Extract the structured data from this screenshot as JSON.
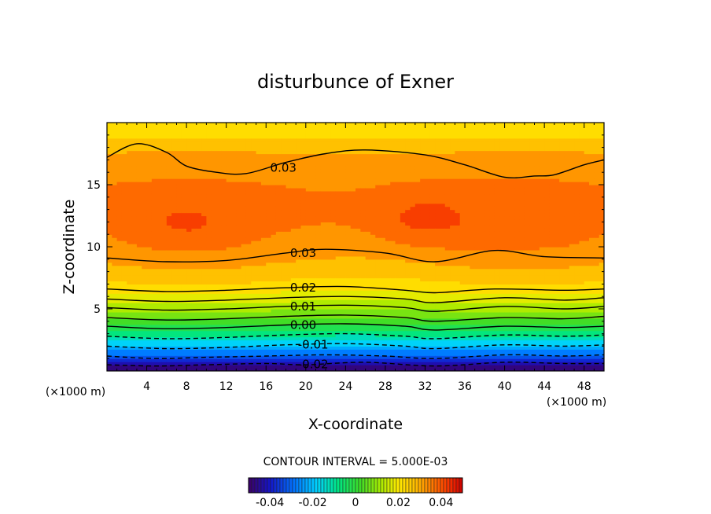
{
  "chart_data": {
    "type": "heatmap",
    "title": "disturbunce of Exner",
    "xlabel": "X-coordinate",
    "ylabel": "Z-coordinate",
    "x_unit": "(×1000 m)",
    "y_unit": "(×1000 m)",
    "xlim": [
      0,
      50
    ],
    "ylim": [
      0,
      20
    ],
    "x_ticks": [
      4,
      8,
      12,
      16,
      20,
      24,
      28,
      32,
      36,
      40,
      44,
      48
    ],
    "y_ticks": [
      5,
      10,
      15
    ],
    "contour_interval_text": "CONTOUR INTERVAL = 5.000E-03",
    "colorbar": {
      "range": [
        -0.05,
        0.05
      ],
      "ticks": [
        "-0.04",
        "-0.02",
        "0",
        "0.02",
        "0.04"
      ],
      "tick_values": [
        -0.04,
        -0.02,
        0,
        0.02,
        0.04
      ]
    },
    "contours": [
      {
        "level": -0.02,
        "label": "-0.02",
        "dashed": true,
        "label_x": 19,
        "points": [
          [
            0,
            0.5
          ],
          [
            5,
            0.4
          ],
          [
            10,
            0.5
          ],
          [
            16,
            0.6
          ],
          [
            20,
            0.5
          ],
          [
            26,
            0.7
          ],
          [
            33,
            0.4
          ],
          [
            40,
            0.7
          ],
          [
            46,
            0.6
          ],
          [
            50,
            0.6
          ]
        ]
      },
      {
        "level": -0.015,
        "label": "",
        "dashed": true,
        "points": [
          [
            0,
            1.2
          ],
          [
            5,
            1.0
          ],
          [
            10,
            1.1
          ],
          [
            16,
            1.2
          ],
          [
            22,
            1.3
          ],
          [
            28,
            1.2
          ],
          [
            33,
            1.0
          ],
          [
            40,
            1.3
          ],
          [
            46,
            1.2
          ],
          [
            50,
            1.3
          ]
        ]
      },
      {
        "level": -0.01,
        "label": "-0.01",
        "dashed": true,
        "label_x": 19,
        "points": [
          [
            0,
            2.0
          ],
          [
            6,
            1.8
          ],
          [
            12,
            1.9
          ],
          [
            18,
            2.1
          ],
          [
            24,
            2.2
          ],
          [
            30,
            2.0
          ],
          [
            33,
            1.8
          ],
          [
            40,
            2.1
          ],
          [
            46,
            2.0
          ],
          [
            50,
            2.1
          ]
        ]
      },
      {
        "level": -0.005,
        "label": "",
        "dashed": true,
        "points": [
          [
            0,
            2.8
          ],
          [
            6,
            2.6
          ],
          [
            12,
            2.7
          ],
          [
            18,
            2.9
          ],
          [
            24,
            3.0
          ],
          [
            30,
            2.8
          ],
          [
            33,
            2.6
          ],
          [
            40,
            2.9
          ],
          [
            46,
            2.8
          ],
          [
            50,
            2.9
          ]
        ]
      },
      {
        "level": 0.0,
        "label": "0.00",
        "dashed": false,
        "label_x": 18,
        "points": [
          [
            0,
            3.6
          ],
          [
            6,
            3.4
          ],
          [
            12,
            3.5
          ],
          [
            18,
            3.7
          ],
          [
            24,
            3.8
          ],
          [
            30,
            3.6
          ],
          [
            33,
            3.3
          ],
          [
            40,
            3.6
          ],
          [
            46,
            3.5
          ],
          [
            50,
            3.6
          ]
        ]
      },
      {
        "level": 0.005,
        "label": "",
        "dashed": false,
        "points": [
          [
            0,
            4.3
          ],
          [
            6,
            4.1
          ],
          [
            12,
            4.2
          ],
          [
            18,
            4.4
          ],
          [
            24,
            4.5
          ],
          [
            30,
            4.3
          ],
          [
            33,
            4.0
          ],
          [
            40,
            4.3
          ],
          [
            46,
            4.2
          ],
          [
            50,
            4.4
          ]
        ]
      },
      {
        "level": 0.01,
        "label": "0.01",
        "dashed": false,
        "label_x": 18,
        "points": [
          [
            0,
            5.1
          ],
          [
            6,
            4.9
          ],
          [
            12,
            5.0
          ],
          [
            18,
            5.2
          ],
          [
            24,
            5.3
          ],
          [
            30,
            5.1
          ],
          [
            33,
            4.8
          ],
          [
            40,
            5.2
          ],
          [
            46,
            5.0
          ],
          [
            50,
            5.2
          ]
        ]
      },
      {
        "level": 0.015,
        "label": "",
        "dashed": false,
        "points": [
          [
            0,
            5.8
          ],
          [
            6,
            5.6
          ],
          [
            12,
            5.7
          ],
          [
            18,
            5.9
          ],
          [
            24,
            6.0
          ],
          [
            30,
            5.8
          ],
          [
            33,
            5.5
          ],
          [
            40,
            5.9
          ],
          [
            46,
            5.7
          ],
          [
            50,
            5.9
          ]
        ]
      },
      {
        "level": 0.02,
        "label": "0.02",
        "dashed": false,
        "label_x": 18,
        "points": [
          [
            0,
            6.6
          ],
          [
            6,
            6.4
          ],
          [
            12,
            6.5
          ],
          [
            18,
            6.7
          ],
          [
            24,
            6.8
          ],
          [
            30,
            6.5
          ],
          [
            33,
            6.3
          ],
          [
            39,
            6.6
          ],
          [
            46,
            6.5
          ],
          [
            50,
            6.6
          ]
        ]
      },
      {
        "level": 0.03,
        "label": "0.03",
        "dashed": false,
        "label_x": 18,
        "points": [
          [
            0,
            9.1
          ],
          [
            6,
            8.8
          ],
          [
            12,
            8.9
          ],
          [
            18,
            9.5
          ],
          [
            22,
            9.8
          ],
          [
            28,
            9.5
          ],
          [
            33,
            8.8
          ],
          [
            39,
            9.7
          ],
          [
            44,
            9.2
          ],
          [
            50,
            9.1
          ]
        ]
      },
      {
        "level": 0.03,
        "label": "0.03",
        "dashed": false,
        "label_x": 16,
        "points": [
          [
            0,
            17.2
          ],
          [
            3,
            18.3
          ],
          [
            6,
            17.6
          ],
          [
            8,
            16.5
          ],
          [
            11,
            16.0
          ],
          [
            14,
            15.9
          ],
          [
            18,
            16.8
          ],
          [
            22,
            17.5
          ],
          [
            26,
            17.8
          ],
          [
            32,
            17.4
          ],
          [
            36,
            16.6
          ],
          [
            40,
            15.6
          ],
          [
            43,
            15.7
          ],
          [
            45,
            15.8
          ],
          [
            48,
            16.6
          ],
          [
            50,
            17.0
          ]
        ]
      }
    ],
    "field": {
      "base_profile": [
        [
          0,
          -0.048
        ],
        [
          0.5,
          -0.045
        ],
        [
          1,
          -0.035
        ],
        [
          2,
          -0.02
        ],
        [
          3,
          -0.008
        ],
        [
          4,
          0.003
        ],
        [
          5,
          0.011
        ],
        [
          6,
          0.018
        ],
        [
          7,
          0.024
        ],
        [
          8,
          0.028
        ],
        [
          9,
          0.031
        ],
        [
          10,
          0.034
        ],
        [
          12,
          0.036
        ],
        [
          14,
          0.036
        ],
        [
          16,
          0.034
        ],
        [
          18,
          0.029
        ],
        [
          19,
          0.024
        ],
        [
          20,
          0.02
        ]
      ],
      "blobs": [
        {
          "x": 32,
          "z": 12.3,
          "amp": 0.006,
          "sx": 5,
          "sz": 2
        },
        {
          "x": 8,
          "z": 12.0,
          "amp": 0.004,
          "sx": 4,
          "sz": 1.5
        }
      ]
    }
  }
}
